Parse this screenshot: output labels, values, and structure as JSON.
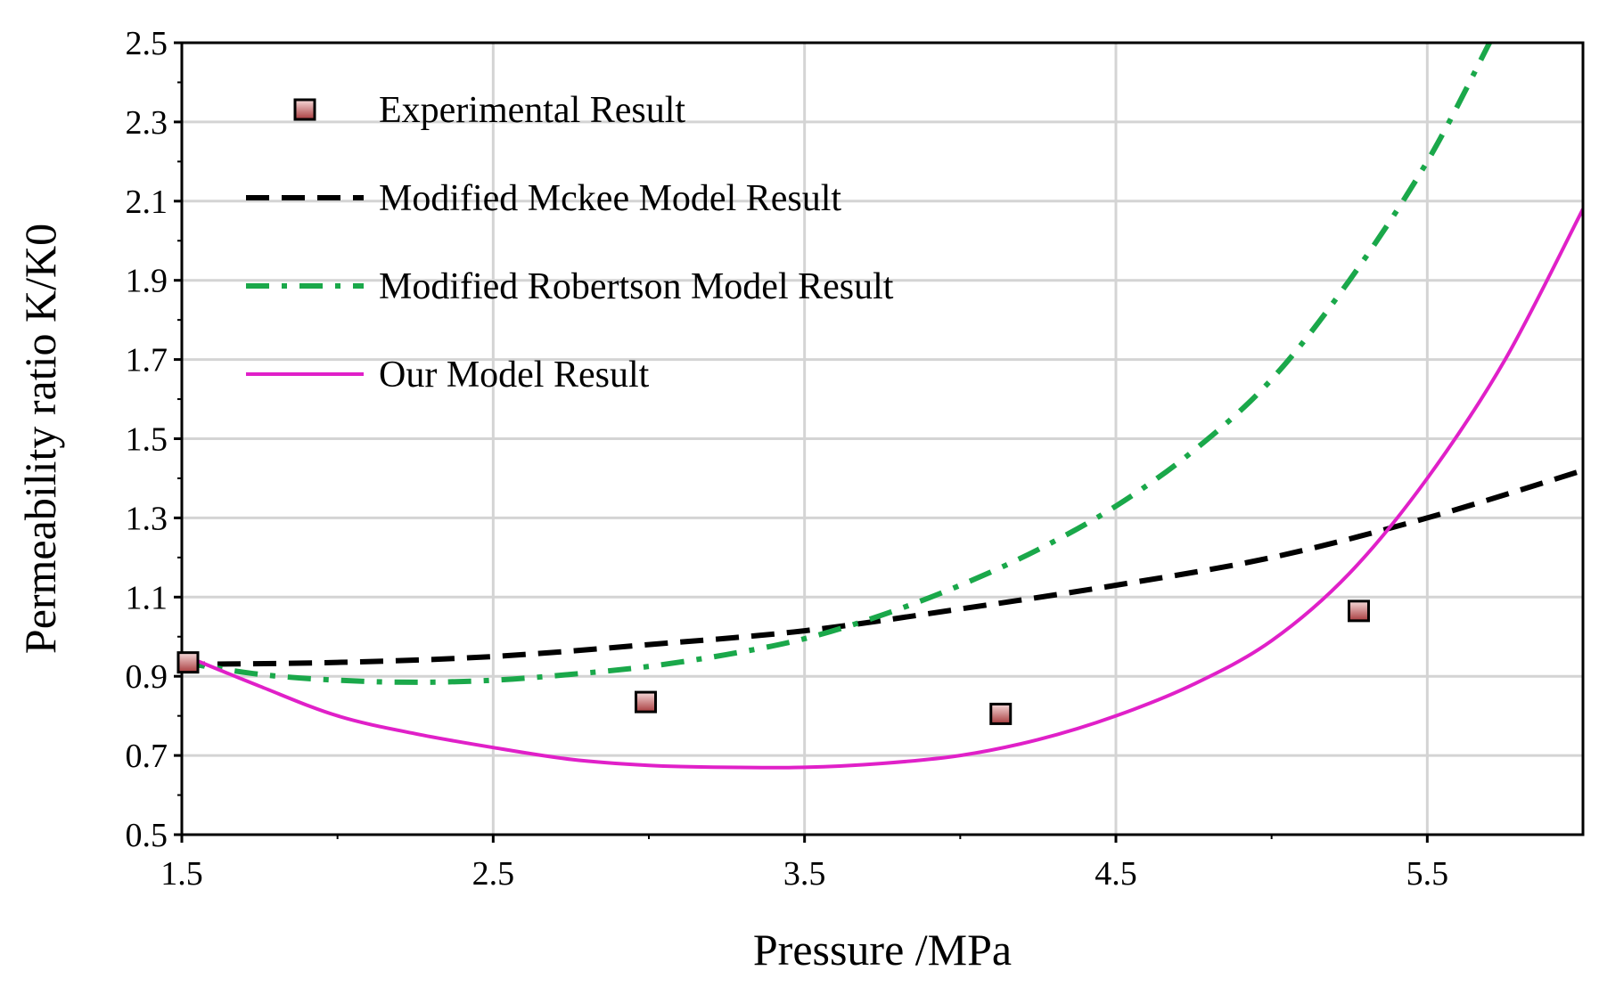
{
  "chart_data": {
    "type": "line",
    "title": "",
    "xlabel": "Pressure /MPa",
    "ylabel": "Permeability ratio K/K0",
    "xlim": [
      1.5,
      6.0
    ],
    "ylim": [
      0.5,
      2.5
    ],
    "xticks": [
      "1.5",
      "2.5",
      "3.5",
      "4.5",
      "5.5"
    ],
    "yticks": [
      "0.5",
      "0.7",
      "0.9",
      "1.1",
      "1.3",
      "1.5",
      "1.7",
      "1.9",
      "2.1",
      "2.3",
      "2.5"
    ],
    "grid": true,
    "legend_position": "top-left",
    "series": [
      {
        "name": "Experimental Result",
        "kind": "scatter",
        "marker": "square",
        "color": "#b0484a",
        "x": [
          1.52,
          2.99,
          4.13,
          5.28
        ],
        "y": [
          0.935,
          0.835,
          0.805,
          1.065
        ]
      },
      {
        "name": "Modified Mckee Model Result",
        "kind": "line",
        "dash": "dashed",
        "color": "#000000",
        "x": [
          1.5,
          2.0,
          2.5,
          3.0,
          3.5,
          4.0,
          4.5,
          5.0,
          5.5,
          6.0
        ],
        "y": [
          0.93,
          0.935,
          0.95,
          0.98,
          1.015,
          1.07,
          1.13,
          1.2,
          1.3,
          1.42
        ]
      },
      {
        "name": "Modified Robertson Model Result",
        "kind": "line",
        "dash": "dash-dot",
        "color": "#1aa84a",
        "x": [
          1.5,
          1.75,
          2.0,
          2.25,
          2.5,
          2.75,
          3.0,
          3.25,
          3.5,
          3.75,
          4.0,
          4.25,
          4.5,
          4.75,
          5.0,
          5.25,
          5.5,
          5.7
        ],
        "y": [
          0.935,
          0.905,
          0.89,
          0.885,
          0.89,
          0.905,
          0.925,
          0.955,
          0.995,
          1.055,
          1.13,
          1.22,
          1.33,
          1.47,
          1.65,
          1.9,
          2.2,
          2.5
        ]
      },
      {
        "name": "Our Model Result",
        "kind": "line",
        "dash": "solid",
        "color": "#e020c8",
        "x": [
          1.5,
          1.75,
          2.0,
          2.25,
          2.5,
          2.75,
          3.0,
          3.25,
          3.5,
          3.75,
          4.0,
          4.25,
          4.5,
          4.75,
          5.0,
          5.25,
          5.5,
          5.75,
          6.0
        ],
        "y": [
          0.955,
          0.875,
          0.8,
          0.755,
          0.72,
          0.69,
          0.675,
          0.67,
          0.67,
          0.68,
          0.7,
          0.74,
          0.8,
          0.88,
          0.99,
          1.16,
          1.4,
          1.7,
          2.08
        ]
      }
    ]
  }
}
